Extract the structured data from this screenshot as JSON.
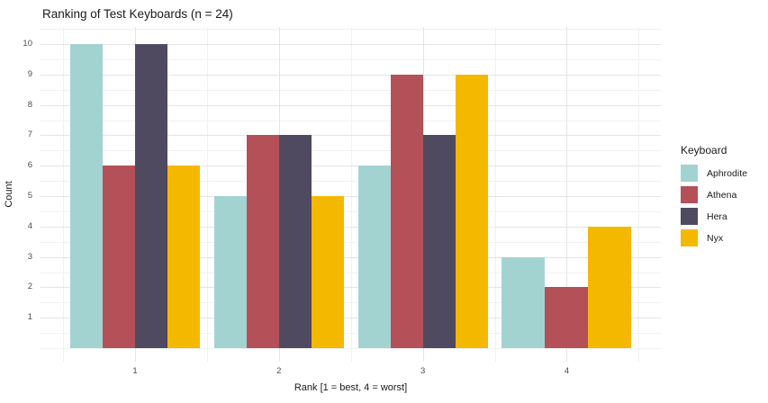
{
  "title": "Ranking of Test Keyboards (n = 24)",
  "chart_data": {
    "type": "bar",
    "title": "Ranking of Test Keyboards (n = 24)",
    "xlabel": "Rank [1 = best, 4 = worst]",
    "ylabel": "Count",
    "legend_title": "Keyboard",
    "legend_position": "right",
    "categories": [
      "1",
      "2",
      "3",
      "4"
    ],
    "series": [
      {
        "name": "Aphrodite",
        "color": "#a3d3d1",
        "values": [
          10,
          5,
          6,
          3
        ]
      },
      {
        "name": "Athena",
        "color": "#b45058",
        "values": [
          6,
          7,
          9,
          2
        ]
      },
      {
        "name": "Hera",
        "color": "#4f4a60",
        "values": [
          10,
          7,
          7,
          0
        ]
      },
      {
        "name": "Nyx",
        "color": "#f5b800",
        "values": [
          6,
          5,
          9,
          4
        ]
      }
    ],
    "ylim": [
      0,
      10.5
    ],
    "yticks": [
      1,
      2,
      3,
      4,
      5,
      6,
      7,
      8,
      9,
      10
    ],
    "grid": true,
    "background": "#ffffff",
    "gridline_major_color": "#e4e4e4",
    "gridline_minor_color": "#f1f1f1"
  }
}
